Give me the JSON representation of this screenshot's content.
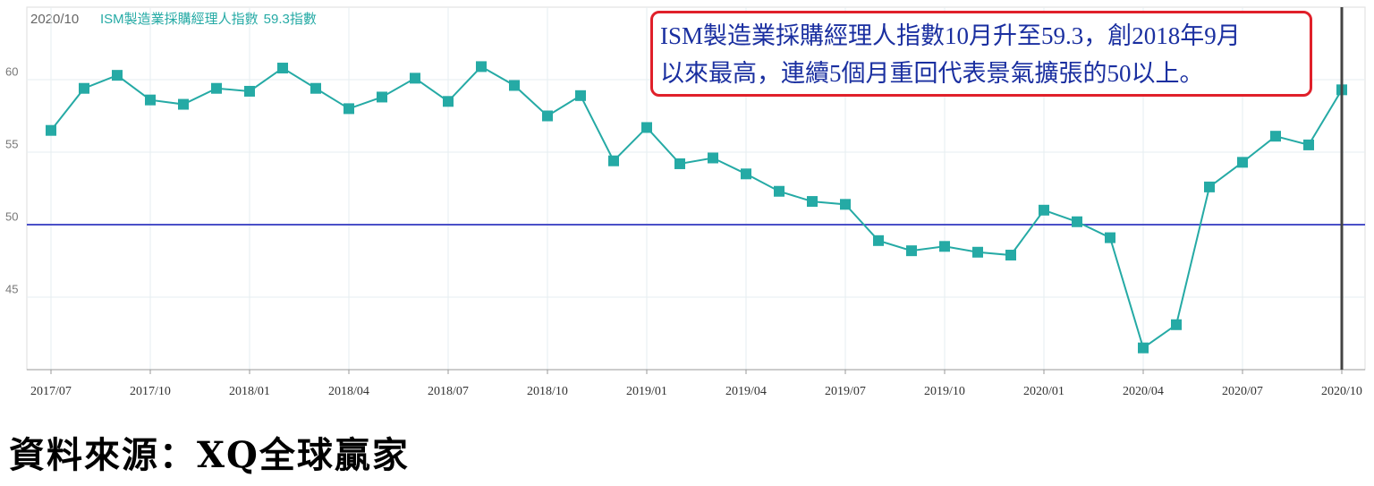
{
  "chart_data": {
    "type": "line",
    "header_date": "2020/10",
    "header_value": "59.3指數",
    "categories": [
      "2017/07",
      null,
      null,
      "2017/10",
      null,
      null,
      "2018/01",
      null,
      null,
      "2018/04",
      null,
      null,
      "2018/07",
      null,
      null,
      "2018/10",
      null,
      null,
      "2019/01",
      null,
      null,
      "2019/04",
      null,
      null,
      "2019/07",
      null,
      null,
      "2019/10",
      null,
      null,
      "2020/01",
      null,
      null,
      "2020/04",
      null,
      null,
      "2020/07",
      null,
      null,
      "2020/10"
    ],
    "series": [
      {
        "name": "ISM製造業採購經理人指數",
        "color": "#25aaa5",
        "values": [
          56.5,
          59.4,
          60.3,
          58.6,
          58.3,
          59.4,
          59.2,
          60.8,
          59.4,
          58.0,
          58.8,
          60.1,
          58.5,
          60.9,
          59.6,
          57.5,
          58.9,
          54.4,
          56.7,
          54.2,
          54.6,
          53.5,
          52.3,
          51.6,
          51.4,
          48.9,
          48.2,
          48.5,
          48.1,
          47.9,
          51.0,
          50.2,
          49.1,
          41.5,
          43.1,
          52.6,
          54.3,
          56.1,
          55.5,
          59.3
        ]
      }
    ],
    "reference_line": 50,
    "reference_color": "#4a50c8",
    "ylim": [
      40,
      65
    ],
    "yticks": [
      45,
      50,
      55,
      60
    ],
    "grid": true,
    "annotation": [
      "ISM製造業採購經理人指數10月升至59.3，創2018年9月",
      "以來最高，連續5個月重回代表景氣擴張的50以上。"
    ]
  },
  "source": "資料來源：XQ全球贏家"
}
